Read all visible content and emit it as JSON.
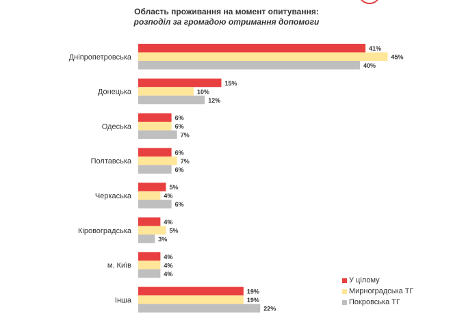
{
  "title": "Область проживання на момент опитування:",
  "subtitle": "розподіл за громадою отримання допомоги",
  "chart_data": {
    "type": "bar",
    "orientation": "horizontal",
    "categories": [
      "Дніпропетровська",
      "Донецька",
      "Одеська",
      "Полтавська",
      "Черкаська",
      "Кіровоградська",
      "м. Київ",
      "Інша"
    ],
    "series": [
      {
        "name": "У цілому",
        "color": "#e84040",
        "values": [
          41,
          15,
          6,
          6,
          5,
          4,
          4,
          19
        ],
        "labels": [
          "41%",
          "15%",
          "6%",
          "6%",
          "5%",
          "4%",
          "4%",
          "19%"
        ]
      },
      {
        "name": "Мирноградська ТГ",
        "color": "#ffe699",
        "values": [
          45,
          10,
          6,
          7,
          4,
          5,
          4,
          19
        ],
        "labels": [
          "45%",
          "10%",
          "6%",
          "7%",
          "4%",
          "5%",
          "4%",
          "19%"
        ]
      },
      {
        "name": "Покровська ТГ",
        "color": "#bfbfbf",
        "values": [
          40,
          12,
          7,
          6,
          6,
          3,
          4,
          22
        ],
        "labels": [
          "40%",
          "12%",
          "7%",
          "6%",
          "6%",
          "3%",
          "4%",
          "22%"
        ]
      }
    ],
    "legend_position": "bottom-right",
    "grid": false
  }
}
